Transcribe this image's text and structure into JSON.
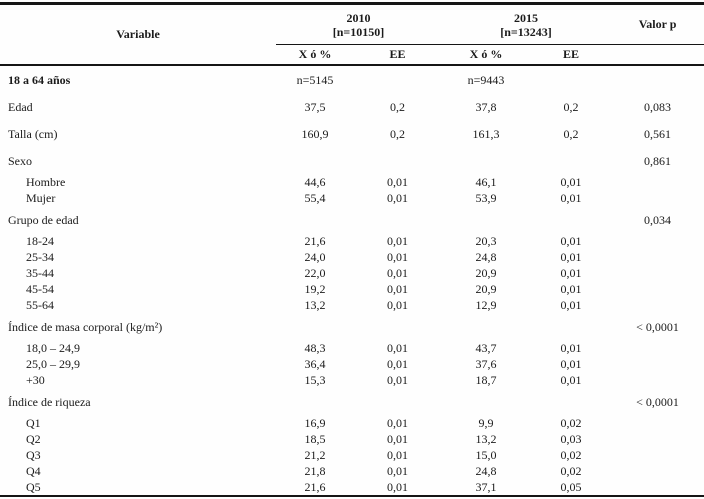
{
  "table": {
    "header": {
      "variable_label": "Variable",
      "groups": [
        {
          "year": "2010",
          "n": "[n=10150]"
        },
        {
          "year": "2015",
          "n": "[n=13243]"
        }
      ],
      "valor_p_label": "Valor p",
      "subheaders": [
        "X ó %",
        "EE",
        "X ó %",
        "EE"
      ]
    },
    "rows": [
      {
        "label": "18 a 64 años",
        "style": "category-bold",
        "cells": [
          "n=5145",
          "",
          "n=9443",
          "",
          ""
        ]
      },
      {
        "label": "Edad",
        "style": "category",
        "cells": [
          "37,5",
          "0,2",
          "37,8",
          "0,2",
          "0,083"
        ]
      },
      {
        "label": "Talla (cm)",
        "style": "category",
        "cells": [
          "160,9",
          "0,2",
          "161,3",
          "0,2",
          "0,561"
        ]
      },
      {
        "label": "Sexo",
        "style": "category",
        "cells": [
          "",
          "",
          "",
          "",
          "0,861"
        ]
      },
      {
        "label": "Hombre",
        "style": "sub",
        "cells": [
          "44,6",
          "0,01",
          "46,1",
          "0,01",
          ""
        ]
      },
      {
        "label": "Mujer",
        "style": "sub",
        "cells": [
          "55,4",
          "0,01",
          "53,9",
          "0,01",
          ""
        ]
      },
      {
        "label": "Grupo de edad",
        "style": "category",
        "cells": [
          "",
          "",
          "",
          "",
          "0,034"
        ]
      },
      {
        "label": "18-24",
        "style": "sub",
        "cells": [
          "21,6",
          "0,01",
          "20,3",
          "0,01",
          ""
        ]
      },
      {
        "label": "25-34",
        "style": "sub",
        "cells": [
          "24,0",
          "0,01",
          "24,8",
          "0,01",
          ""
        ]
      },
      {
        "label": "35-44",
        "style": "sub",
        "cells": [
          "22,0",
          "0,01",
          "20,9",
          "0,01",
          ""
        ]
      },
      {
        "label": "45-54",
        "style": "sub",
        "cells": [
          "19,2",
          "0,01",
          "20,9",
          "0,01",
          ""
        ]
      },
      {
        "label": "55-64",
        "style": "sub",
        "cells": [
          "13,2",
          "0,01",
          "12,9",
          "0,01",
          ""
        ]
      },
      {
        "label": "Índice de masa corporal (kg/m²)",
        "style": "category",
        "cells": [
          "",
          "",
          "",
          "",
          "< 0,0001"
        ]
      },
      {
        "label": "18,0 – 24,9",
        "style": "sub",
        "cells": [
          "48,3",
          "0,01",
          "43,7",
          "0,01",
          ""
        ]
      },
      {
        "label": "25,0 – 29,9",
        "style": "sub",
        "cells": [
          "36,4",
          "0,01",
          "37,6",
          "0,01",
          ""
        ]
      },
      {
        "label": "+30",
        "style": "sub",
        "cells": [
          "15,3",
          "0,01",
          "18,7",
          "0,01",
          ""
        ]
      },
      {
        "label": "Índice de riqueza",
        "style": "category",
        "cells": [
          "",
          "",
          "",
          "",
          "< 0,0001"
        ]
      },
      {
        "label": "Q1",
        "style": "sub",
        "cells": [
          "16,9",
          "0,01",
          "9,9",
          "0,02",
          ""
        ]
      },
      {
        "label": "Q2",
        "style": "sub",
        "cells": [
          "18,5",
          "0,01",
          "13,2",
          "0,03",
          ""
        ]
      },
      {
        "label": "Q3",
        "style": "sub",
        "cells": [
          "21,2",
          "0,01",
          "15,0",
          "0,02",
          ""
        ]
      },
      {
        "label": "Q4",
        "style": "sub",
        "cells": [
          "21,8",
          "0,01",
          "24,8",
          "0,02",
          ""
        ]
      },
      {
        "label": "Q5",
        "style": "sub",
        "cells": [
          "21,6",
          "0,01",
          "37,1",
          "0,05",
          ""
        ]
      }
    ]
  }
}
